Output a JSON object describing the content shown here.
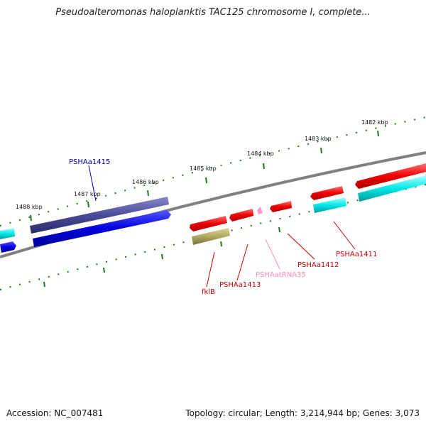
{
  "title": "Pseudoalteromonas haloplanktis TAC125 chromosome I, complete...",
  "footer": {
    "accession": "Accession: NC_007481",
    "topology": "Topology: circular; Length: 3,214,944 bp; Genes: 3,073"
  },
  "scale_labels": [
    "1482 kbp",
    "1483 kbp",
    "1484 kbp",
    "1485 kbp",
    "1486 kbp",
    "1487 kbp",
    "1488 kbp"
  ],
  "gene_labels": [
    {
      "text": "PSHAa1415",
      "color": "#0000aa"
    },
    {
      "text": "fklB",
      "color": "#cc0000"
    },
    {
      "text": "PSHAa1413",
      "color": "#cc0000"
    },
    {
      "text": "PSHAatRNA35",
      "color": "#ff88bb"
    },
    {
      "text": "PSHAa1412",
      "color": "#cc0000"
    },
    {
      "text": "PSHAa1411",
      "color": "#cc0000"
    }
  ],
  "colors": {
    "backbone": "#808080",
    "ticks": "#1a7a1a",
    "cds_forward": "#e00000",
    "cds_reverse": "#00e0e0",
    "gene_blue": "#0000dd",
    "gene_darkblue": "#4a4a99",
    "gene_olive": "#b0a860",
    "trna": "#ff99cc"
  }
}
